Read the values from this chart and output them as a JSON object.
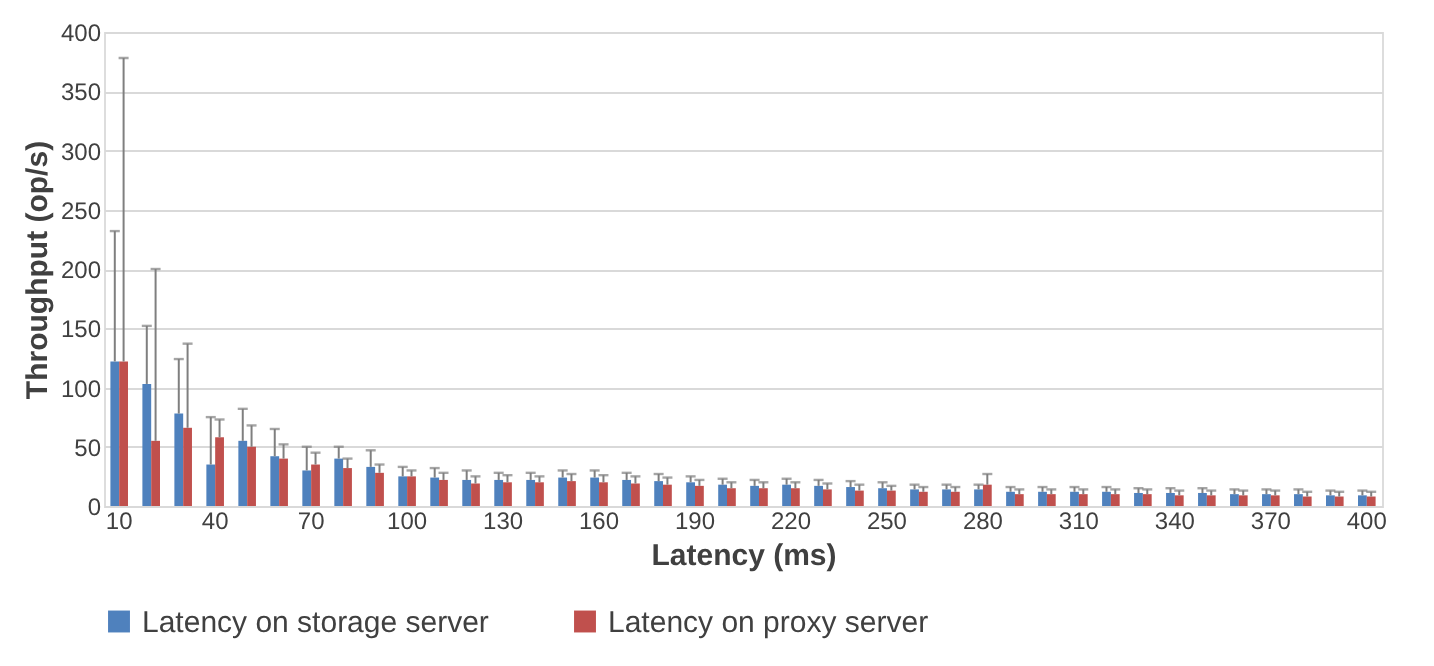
{
  "chart_data": {
    "type": "bar",
    "xlabel": "Latency (ms)",
    "ylabel": "Throughput (op/s)",
    "categories": [
      "10",
      null,
      null,
      "40",
      null,
      null,
      "70",
      null,
      null,
      "100",
      null,
      null,
      "130",
      null,
      null,
      "160",
      null,
      null,
      "190",
      null,
      null,
      "220",
      null,
      null,
      "250",
      null,
      null,
      "280",
      null,
      null,
      "310",
      null,
      null,
      "340",
      null,
      null,
      "370",
      null,
      null,
      "400"
    ],
    "series": [
      {
        "name": "Latency on storage server",
        "color": "#4f81bd",
        "values": [
          122,
          103,
          78,
          35,
          55,
          42,
          30,
          40,
          33,
          25,
          24,
          22,
          22,
          22,
          24,
          24,
          22,
          21,
          20,
          18,
          17,
          18,
          17,
          16,
          15,
          14,
          14,
          14,
          12,
          12,
          12,
          12,
          11,
          11,
          11,
          10,
          10,
          10,
          9,
          9
        ],
        "errors": [
          [
            122,
            232
          ],
          [
            103,
            152
          ],
          [
            78,
            124
          ],
          [
            35,
            75
          ],
          [
            55,
            82
          ],
          [
            42,
            65
          ],
          [
            30,
            50
          ],
          [
            40,
            50
          ],
          [
            33,
            47
          ],
          [
            25,
            33
          ],
          [
            24,
            32
          ],
          [
            22,
            30
          ],
          [
            22,
            28
          ],
          [
            22,
            28
          ],
          [
            24,
            30
          ],
          [
            24,
            30
          ],
          [
            22,
            28
          ],
          [
            21,
            27
          ],
          [
            20,
            25
          ],
          [
            18,
            23
          ],
          [
            17,
            22
          ],
          [
            18,
            23
          ],
          [
            17,
            22
          ],
          [
            16,
            21
          ],
          [
            15,
            20
          ],
          [
            14,
            18
          ],
          [
            14,
            18
          ],
          [
            14,
            18
          ],
          [
            12,
            16
          ],
          [
            12,
            16
          ],
          [
            12,
            16
          ],
          [
            12,
            16
          ],
          [
            11,
            15
          ],
          [
            11,
            15
          ],
          [
            11,
            15
          ],
          [
            10,
            14
          ],
          [
            10,
            14
          ],
          [
            10,
            14
          ],
          [
            9,
            13
          ],
          [
            9,
            13
          ]
        ]
      },
      {
        "name": "Latency on proxy server",
        "color": "#c0504d",
        "values": [
          122,
          55,
          66,
          58,
          50,
          40,
          35,
          32,
          28,
          25,
          22,
          19,
          20,
          20,
          21,
          20,
          19,
          18,
          17,
          15,
          15,
          15,
          14,
          13,
          13,
          12,
          12,
          18,
          10,
          10,
          10,
          10,
          10,
          9,
          9,
          9,
          9,
          8,
          8,
          8
        ],
        "errors": [
          [
            122,
            378
          ],
          [
            55,
            200
          ],
          [
            66,
            137
          ],
          [
            58,
            73
          ],
          [
            50,
            68
          ],
          [
            40,
            52
          ],
          [
            35,
            45
          ],
          [
            32,
            40
          ],
          [
            28,
            35
          ],
          [
            25,
            30
          ],
          [
            22,
            28
          ],
          [
            19,
            25
          ],
          [
            20,
            26
          ],
          [
            20,
            25
          ],
          [
            21,
            27
          ],
          [
            20,
            26
          ],
          [
            19,
            25
          ],
          [
            18,
            24
          ],
          [
            17,
            22
          ],
          [
            15,
            20
          ],
          [
            15,
            20
          ],
          [
            15,
            20
          ],
          [
            14,
            19
          ],
          [
            13,
            18
          ],
          [
            13,
            17
          ],
          [
            12,
            16
          ],
          [
            12,
            16
          ],
          [
            18,
            27
          ],
          [
            10,
            14
          ],
          [
            10,
            14
          ],
          [
            10,
            14
          ],
          [
            10,
            14
          ],
          [
            10,
            14
          ],
          [
            9,
            13
          ],
          [
            9,
            13
          ],
          [
            9,
            13
          ],
          [
            9,
            13
          ],
          [
            8,
            12
          ],
          [
            8,
            12
          ],
          [
            8,
            12
          ]
        ]
      }
    ],
    "ylim": [
      0,
      400
    ],
    "yticks": [
      0,
      50,
      100,
      150,
      200,
      250,
      300,
      350,
      400
    ],
    "grid": "y",
    "legend": "bottom"
  }
}
